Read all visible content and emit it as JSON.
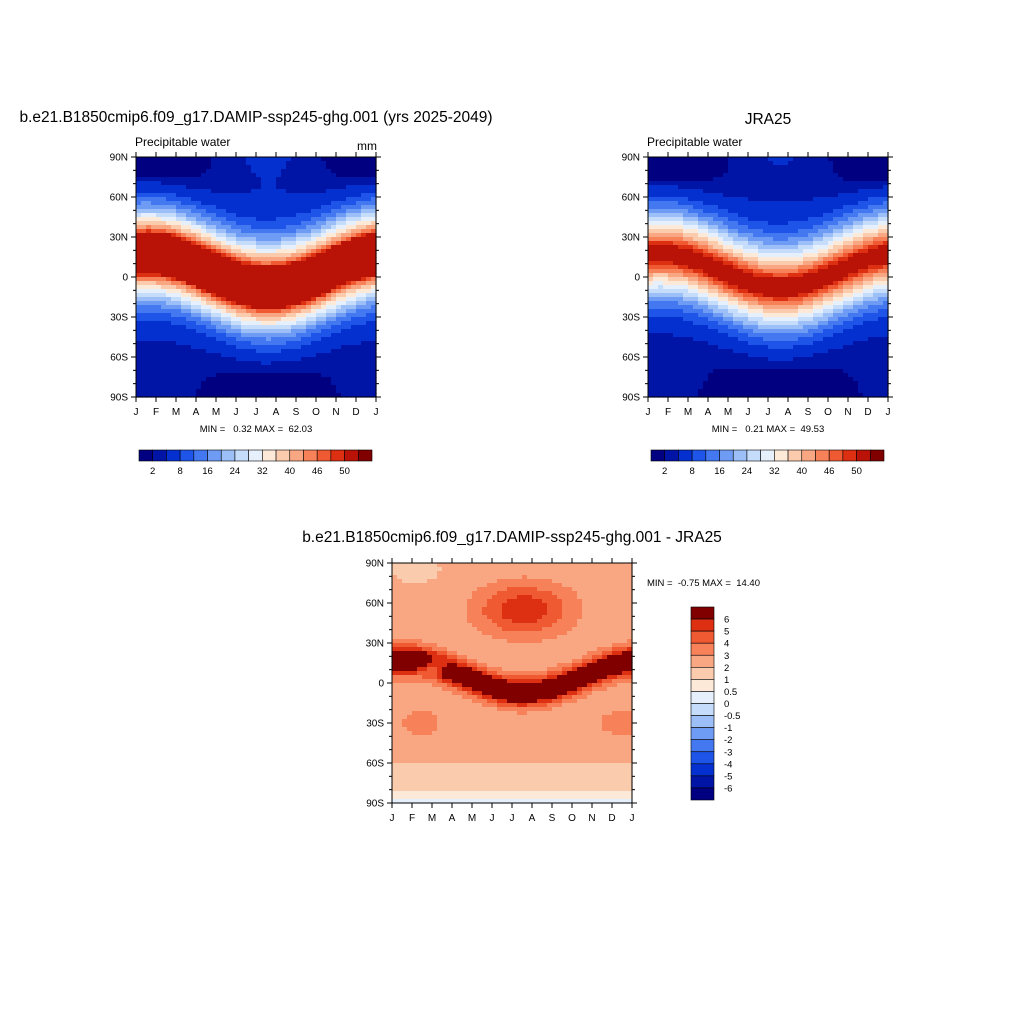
{
  "chart_data": [
    {
      "type": "heatmap",
      "title": "b.e21.B1850cmip6.f09_g17.DAMIP-ssp245-ghg.001 (yrs 2025-2049)",
      "left_label": "Precipitable water",
      "right_label": "mm",
      "x_ticks": [
        "J",
        "F",
        "M",
        "A",
        "M",
        "J",
        "J",
        "A",
        "S",
        "O",
        "N",
        "D",
        "J"
      ],
      "y_ticks": [
        "90N",
        "60N",
        "30N",
        "0",
        "30S",
        "60S",
        "90S"
      ],
      "stats": "MIN =   0.32 MAX =  62.03",
      "colorbar_labels": [
        "2",
        "8",
        "16",
        "24",
        "32",
        "40",
        "46",
        "50"
      ],
      "levels": [
        2,
        4,
        8,
        12,
        16,
        20,
        24,
        28,
        32,
        36,
        40,
        43,
        46,
        48,
        50
      ],
      "itcz_peak": 60,
      "itcz_width": 21,
      "itcz_amp": 15,
      "pole_base": 1.5
    },
    {
      "type": "heatmap",
      "title": "JRA25",
      "left_label": "Precipitable water",
      "right_label": "",
      "x_ticks": [
        "J",
        "F",
        "M",
        "A",
        "M",
        "J",
        "J",
        "A",
        "S",
        "O",
        "N",
        "D",
        "J"
      ],
      "y_ticks": [
        "90N",
        "60N",
        "30N",
        "0",
        "30S",
        "60S",
        "90S"
      ],
      "stats": "MIN =   0.21 MAX =  49.53",
      "colorbar_labels": [
        "2",
        "8",
        "16",
        "24",
        "32",
        "40",
        "46",
        "50"
      ],
      "levels": [
        2,
        4,
        8,
        12,
        16,
        20,
        24,
        28,
        32,
        36,
        40,
        43,
        46,
        48,
        50
      ],
      "itcz_peak": 48,
      "itcz_width": 20,
      "itcz_amp": 11,
      "pole_base": 1.2
    },
    {
      "type": "heatmap",
      "title": "b.e21.B1850cmip6.f09_g17.DAMIP-ssp245-ghg.001 - JRA25",
      "x_ticks": [
        "J",
        "F",
        "M",
        "A",
        "M",
        "J",
        "J",
        "A",
        "S",
        "O",
        "N",
        "D",
        "J"
      ],
      "y_ticks": [
        "90N",
        "60N",
        "30N",
        "0",
        "30S",
        "60S",
        "90S"
      ],
      "stats": "MIN =  -0.75 MAX =  14.40",
      "colorbar_labels": [
        "6",
        "5",
        "4",
        "3",
        "2",
        "1",
        "0.5",
        "0",
        "-0.5",
        "-1",
        "-2",
        "-3",
        "-4",
        "-5",
        "-6"
      ],
      "levels": [
        -6,
        -5,
        -4,
        -3,
        -2,
        -1,
        -0.5,
        0,
        0.5,
        1,
        2,
        3,
        4,
        5,
        6
      ]
    }
  ],
  "palettes": {
    "seq": [
      "#000080",
      "#0015a6",
      "#0530d0",
      "#1e55e8",
      "#4478f0",
      "#6e9cf5",
      "#9cbff8",
      "#c6dcfb",
      "#e6f0fc",
      "#fde9d8",
      "#fbcbae",
      "#f9a783",
      "#f7825a",
      "#f05a32",
      "#dd2f12",
      "#b81306",
      "#800000"
    ],
    "div": [
      "#000080",
      "#0015a6",
      "#0530d0",
      "#1e55e8",
      "#4478f0",
      "#6e9cf5",
      "#9cbff8",
      "#c6dcfb",
      "#e6f0fc",
      "#fde9d8",
      "#fbcbae",
      "#f9a783",
      "#f7825a",
      "#f05a32",
      "#dd2f12",
      "#800000"
    ]
  }
}
